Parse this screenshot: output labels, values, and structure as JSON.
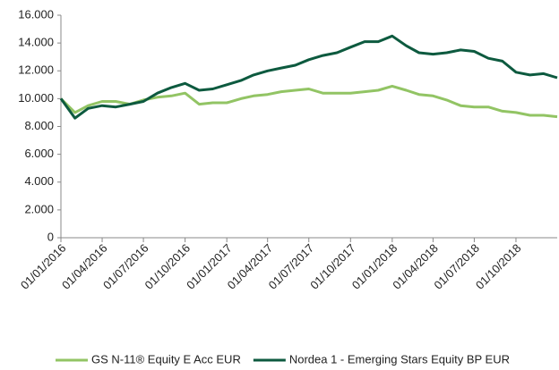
{
  "chart_data": {
    "type": "line",
    "x": [
      "01/01/2016",
      "01/02/2016",
      "01/03/2016",
      "01/04/2016",
      "01/05/2016",
      "01/06/2016",
      "01/07/2016",
      "01/08/2016",
      "01/09/2016",
      "01/10/2016",
      "01/11/2016",
      "01/12/2016",
      "01/01/2017",
      "01/02/2017",
      "01/03/2017",
      "01/04/2017",
      "01/05/2017",
      "01/06/2017",
      "01/07/2017",
      "01/08/2017",
      "01/09/2017",
      "01/10/2017",
      "01/11/2017",
      "01/12/2017",
      "01/01/2018",
      "01/02/2018",
      "01/03/2018",
      "01/04/2018",
      "01/05/2018",
      "01/06/2018",
      "01/07/2018",
      "01/08/2018",
      "01/09/2018",
      "01/10/2018",
      "01/11/2018",
      "01/12/2018",
      "31/12/2018"
    ],
    "series": [
      {
        "name": "GS N-11® Equity E Acc EUR",
        "color": "#92c464",
        "values": [
          10000,
          9000,
          9500,
          9800,
          9800,
          9600,
          9900,
          10100,
          10200,
          10400,
          9600,
          9700,
          9700,
          10000,
          10200,
          10300,
          10500,
          10600,
          10700,
          10400,
          10400,
          10400,
          10500,
          10600,
          10900,
          10600,
          10300,
          10200,
          9900,
          9500,
          9400,
          9400,
          9100,
          9000,
          8800,
          8800,
          8700
        ]
      },
      {
        "name": "Nordea 1 - Emerging Stars Equity BP EUR",
        "color": "#0d5a3f",
        "values": [
          10000,
          8600,
          9300,
          9500,
          9400,
          9600,
          9800,
          10400,
          10800,
          11100,
          10600,
          10700,
          11000,
          11300,
          11700,
          12000,
          12200,
          12400,
          12800,
          13100,
          13300,
          13700,
          14100,
          14100,
          14500,
          13800,
          13300,
          13200,
          13300,
          13500,
          13400,
          12900,
          12700,
          11900,
          11700,
          11800,
          11500
        ]
      }
    ],
    "xlim": [
      "01/01/2016",
      "31/12/2018"
    ],
    "xticks": [
      "01/01/2016",
      "01/04/2016",
      "01/07/2016",
      "01/10/2016",
      "01/01/2017",
      "01/04/2017",
      "01/07/2017",
      "01/10/2017",
      "01/01/2018",
      "01/04/2018",
      "01/07/2018",
      "01/10/2018"
    ],
    "ylim": [
      0,
      16000
    ],
    "yticks": [
      0,
      {
        "value": 2000,
        "label": "2.000"
      },
      {
        "value": 4000,
        "label": "4.000"
      },
      {
        "value": 6000,
        "label": "6.000"
      },
      {
        "value": 8000,
        "label": "8.000"
      },
      {
        "value": 10000,
        "label": "10.000"
      },
      {
        "value": 12000,
        "label": "12.000"
      },
      {
        "value": 14000,
        "label": "14.000"
      },
      {
        "value": 16000,
        "label": "16.000"
      }
    ],
    "grid": false,
    "legend": "bottom"
  }
}
